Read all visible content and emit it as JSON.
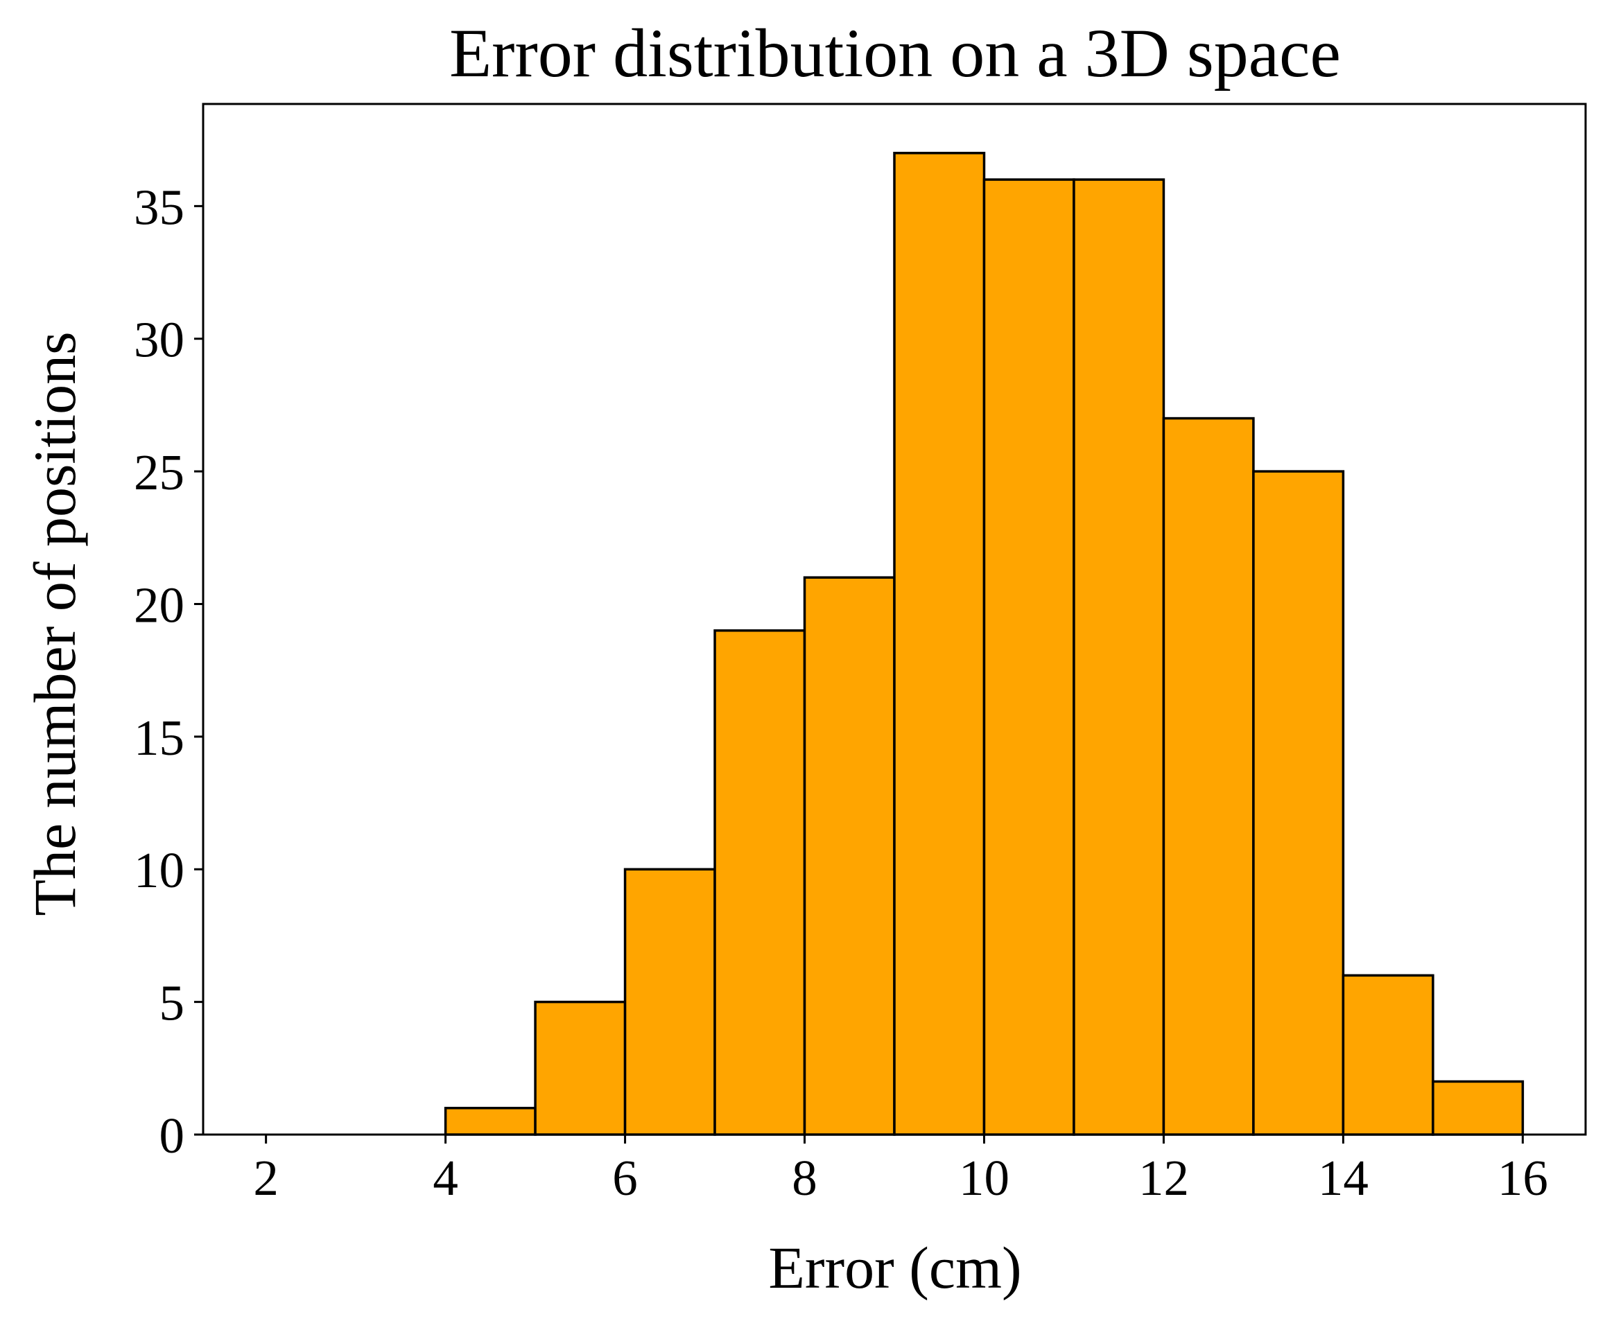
{
  "chart_data": {
    "type": "bar",
    "subtype": "histogram",
    "title": "Error distribution on a 3D space",
    "xlabel": "Error (cm)",
    "ylabel": "The number of positions",
    "bins": [
      {
        "start": 2,
        "end": 3,
        "count": 0
      },
      {
        "start": 3,
        "end": 4,
        "count": 0
      },
      {
        "start": 4,
        "end": 5,
        "count": 1
      },
      {
        "start": 5,
        "end": 6,
        "count": 5
      },
      {
        "start": 6,
        "end": 7,
        "count": 10
      },
      {
        "start": 7,
        "end": 8,
        "count": 19
      },
      {
        "start": 8,
        "end": 9,
        "count": 21
      },
      {
        "start": 9,
        "end": 10,
        "count": 37
      },
      {
        "start": 10,
        "end": 11,
        "count": 36
      },
      {
        "start": 11,
        "end": 12,
        "count": 36
      },
      {
        "start": 12,
        "end": 13,
        "count": 27
      },
      {
        "start": 13,
        "end": 14,
        "count": 25
      },
      {
        "start": 14,
        "end": 15,
        "count": 6
      },
      {
        "start": 15,
        "end": 16,
        "count": 2
      }
    ],
    "xlim": [
      1.3,
      16.7
    ],
    "ylim": [
      0,
      38.85
    ],
    "xticks": [
      "2",
      "4",
      "6",
      "8",
      "10",
      "12",
      "14",
      "16"
    ],
    "yticks": [
      "0",
      "5",
      "10",
      "15",
      "20",
      "25",
      "30",
      "35"
    ],
    "bar_color": "#ffa500",
    "edge_color": "#000000",
    "grid": false,
    "legend": "none"
  }
}
